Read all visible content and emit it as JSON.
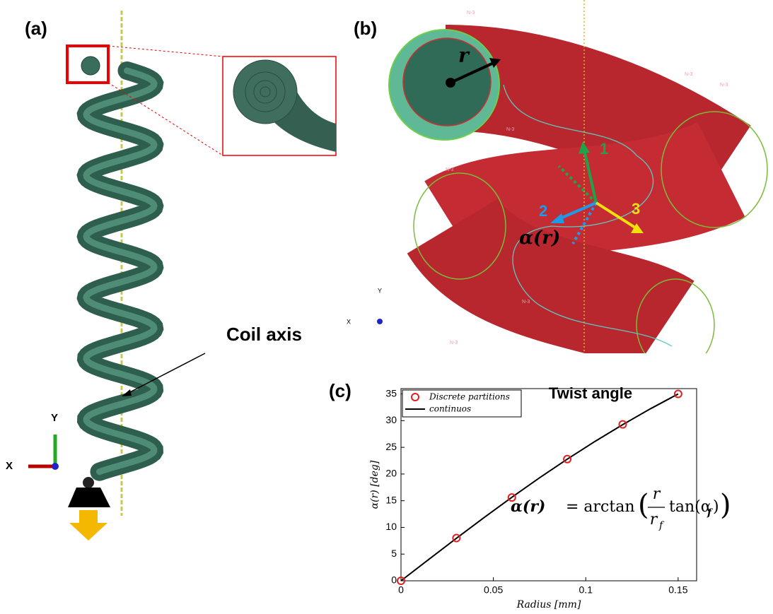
{
  "panel_labels": [
    "(a)",
    "(b)",
    "(c)"
  ],
  "panel_a": {
    "annotation": "Coil axis",
    "axis_y": "Y",
    "axis_x": "X"
  },
  "panel_b": {
    "radius_label": "r",
    "direction_labels": [
      "1",
      "2",
      "3"
    ],
    "angle_label": "α(r)",
    "axis_y": "Y",
    "axis_x": "X",
    "node_label": "N-3"
  },
  "chart_data": {
    "type": "line",
    "title": "Twist angle",
    "x_label": "Radius [mm]",
    "y_label": "α(r) [deg]",
    "xlim": [
      0,
      0.16
    ],
    "ylim": [
      0,
      36
    ],
    "xticks": [
      0,
      0.05,
      0.1,
      0.15
    ],
    "yticks": [
      0,
      5,
      10,
      15,
      20,
      25,
      30,
      35
    ],
    "legend": "top-left",
    "series": [
      {
        "name": "Discrete partitions",
        "color": "#e02020",
        "style": "markers",
        "x": [
          0,
          0.03,
          0.06,
          0.09,
          0.12,
          0.15
        ],
        "values": [
          0,
          8,
          15.6,
          22.8,
          29.3,
          35
        ]
      },
      {
        "name": "continuos",
        "color": "#000000",
        "style": "line",
        "x": [
          0,
          0.015,
          0.03,
          0.045,
          0.06,
          0.075,
          0.09,
          0.105,
          0.12,
          0.135,
          0.15
        ],
        "values": [
          0,
          4.0,
          7.97,
          11.86,
          15.65,
          19.3,
          22.79,
          26.11,
          29.25,
          32.22,
          35
        ]
      }
    ],
    "formula": {
      "lhs": "α(r)",
      "eq": "= arctan",
      "num": "r",
      "den": "r",
      "den_sub": "f",
      "tan": "tan(α",
      "tan_sub": "f",
      "close": ")"
    }
  }
}
